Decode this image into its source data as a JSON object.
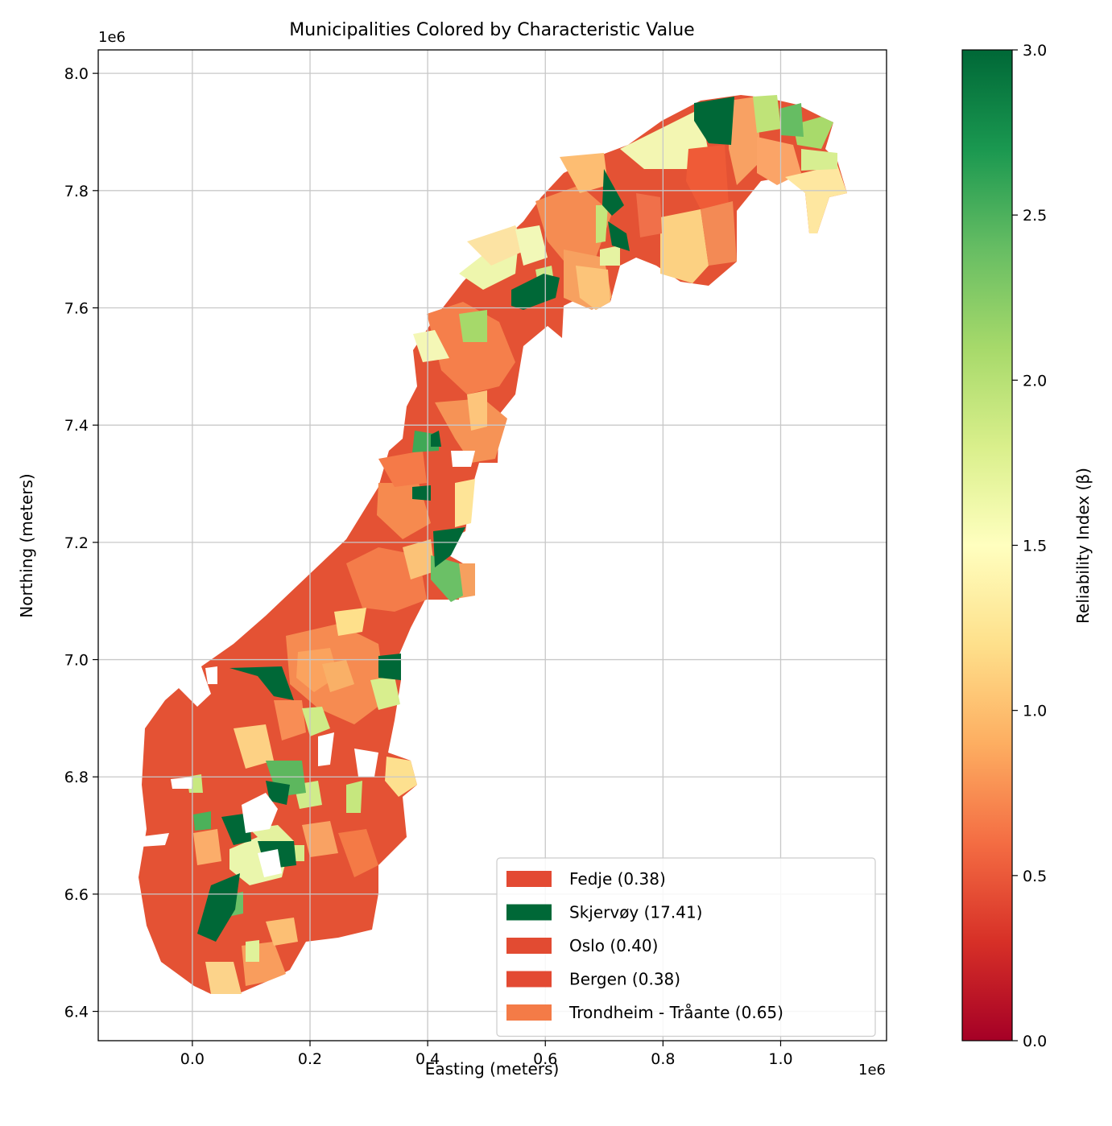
{
  "chart_data": {
    "type": "choropleth",
    "title": "Municipalities Colored by Characteristic Value",
    "xlabel": "Easting (meters)",
    "ylabel": "Northing (meters)",
    "x_offset_label": "1e6",
    "y_offset_label": "1e6",
    "xlim": [
      -0.16,
      1.18
    ],
    "ylim": [
      6.35,
      8.04
    ],
    "x_ticks": [
      {
        "value": 0.0,
        "label": "0.0"
      },
      {
        "value": 0.2,
        "label": "0.2"
      },
      {
        "value": 0.4,
        "label": "0.4"
      },
      {
        "value": 0.6,
        "label": "0.6"
      },
      {
        "value": 0.8,
        "label": "0.8"
      },
      {
        "value": 1.0,
        "label": "1.0"
      }
    ],
    "y_ticks": [
      {
        "value": 6.4,
        "label": "6.4"
      },
      {
        "value": 6.6,
        "label": "6.6"
      },
      {
        "value": 6.8,
        "label": "6.8"
      },
      {
        "value": 7.0,
        "label": "7.0"
      },
      {
        "value": 7.2,
        "label": "7.2"
      },
      {
        "value": 7.4,
        "label": "7.4"
      },
      {
        "value": 7.6,
        "label": "7.6"
      },
      {
        "value": 7.8,
        "label": "7.8"
      },
      {
        "value": 8.0,
        "label": "8.0"
      }
    ],
    "grid": true,
    "colorbar": {
      "label": "Reliability Index (β)",
      "colormap": "RdYlGn",
      "range": [
        0.0,
        3.0
      ],
      "ticks": [
        {
          "value": 0.0,
          "label": "0.0"
        },
        {
          "value": 0.5,
          "label": "0.5"
        },
        {
          "value": 1.0,
          "label": "1.0"
        },
        {
          "value": 1.5,
          "label": "1.5"
        },
        {
          "value": 2.0,
          "label": "2.0"
        },
        {
          "value": 2.5,
          "label": "2.5"
        },
        {
          "value": 3.0,
          "label": "3.0"
        }
      ],
      "stops": [
        "#a50026",
        "#d73027",
        "#f46d43",
        "#fdae61",
        "#fee08b",
        "#ffffbf",
        "#d9ef8b",
        "#a6d96a",
        "#66bd63",
        "#1a9850",
        "#006837"
      ]
    },
    "legend": {
      "placement": "lower-right",
      "entries": [
        {
          "label": "Fedje (0.38)",
          "color": "#e34a33"
        },
        {
          "label": "Skjervøy (17.41)",
          "color": "#006837"
        },
        {
          "label": "Oslo (0.40)",
          "color": "#e24b32"
        },
        {
          "label": "Bergen (0.38)",
          "color": "#e34a33"
        },
        {
          "label": "Trondheim - Tråante (0.65)",
          "color": "#f47b47"
        }
      ]
    }
  }
}
